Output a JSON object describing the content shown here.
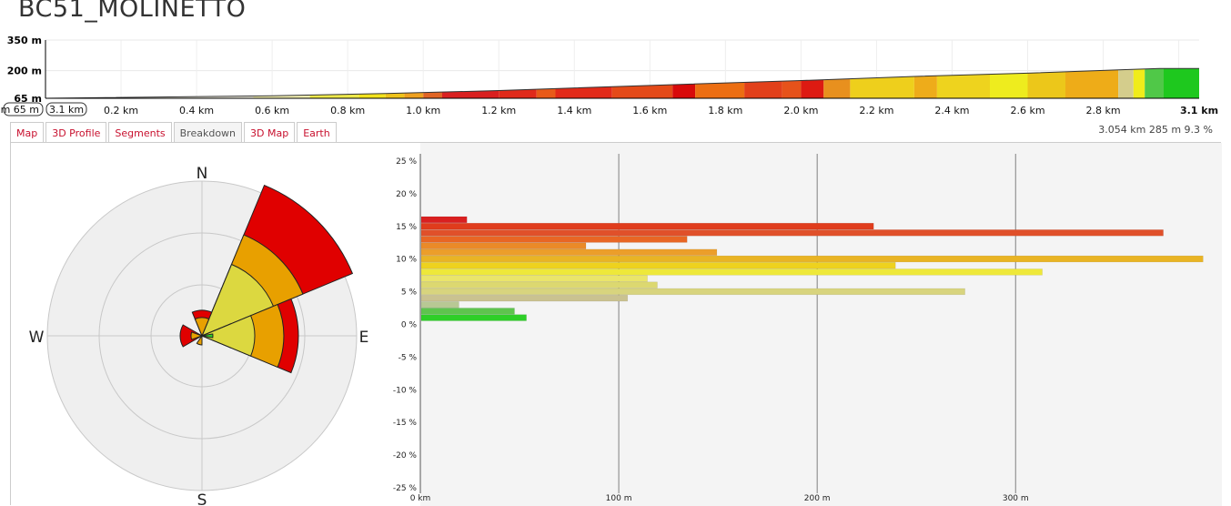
{
  "page": {
    "title": "BC51_MOLINETTO"
  },
  "profile": {
    "y_labels": [
      "350 m",
      "200 m",
      "65 m"
    ],
    "x_range_left": "m 65 m",
    "x_range_right": "3.1 km",
    "x_ticks": [
      "0.2 km",
      "0.4 km",
      "0.6 km",
      "0.8 km",
      "1.0 km",
      "1.2 km",
      "1.4 km",
      "1.6 km",
      "1.8 km",
      "2.0 km",
      "2.2 km",
      "2.4 km",
      "2.6 km",
      "2.8 km"
    ],
    "x_end": "3.1 km",
    "distance_km": 3.054,
    "elevation_min_m": 65,
    "elevation_max_m": 350
  },
  "tabs": [
    {
      "label": "Map",
      "active": false
    },
    {
      "label": "3D Profile",
      "active": false
    },
    {
      "label": "Segments",
      "active": false
    },
    {
      "label": "Breakdown",
      "active": true
    },
    {
      "label": "3D Map",
      "active": false
    },
    {
      "label": "Earth",
      "active": false
    }
  ],
  "stats": {
    "text": "3.054 km 285 m 9.3 %"
  },
  "rose": {
    "compass": {
      "n": "N",
      "e": "E",
      "s": "S",
      "w": "W"
    }
  },
  "chart_data": {
    "type": "bar",
    "orientation": "horizontal",
    "y_ticks": [
      "25 %",
      "20 %",
      "15 %",
      "10 %",
      "5 %",
      "0 %",
      "-5 %",
      "-10 %",
      "-15 %",
      "-20 %",
      "-25 %"
    ],
    "x_ticks": [
      "0 km",
      "100 m",
      "200 m",
      "300 m"
    ],
    "ylim": [
      -25,
      25
    ],
    "xlim": [
      0,
      400
    ],
    "grade_percent": [
      16,
      15,
      14,
      13,
      12,
      11,
      10,
      9,
      8,
      7,
      6,
      5,
      4,
      3,
      2,
      1,
      0
    ],
    "distance_m": [
      23,
      228,
      374,
      134,
      83,
      149,
      394,
      239,
      313,
      114,
      119,
      274,
      104,
      19,
      47,
      53,
      0
    ],
    "colors": [
      "#d92020",
      "#e03c1c",
      "#e0502a",
      "#e86624",
      "#ea8a28",
      "#ec9e2a",
      "#e9b424",
      "#eed21e",
      "#eee83a",
      "#eae56a",
      "#dcd870",
      "#d8d47e",
      "#cac290",
      "#b8c894",
      "#5ec44e",
      "#2ecf28",
      "#2ecf28"
    ]
  }
}
